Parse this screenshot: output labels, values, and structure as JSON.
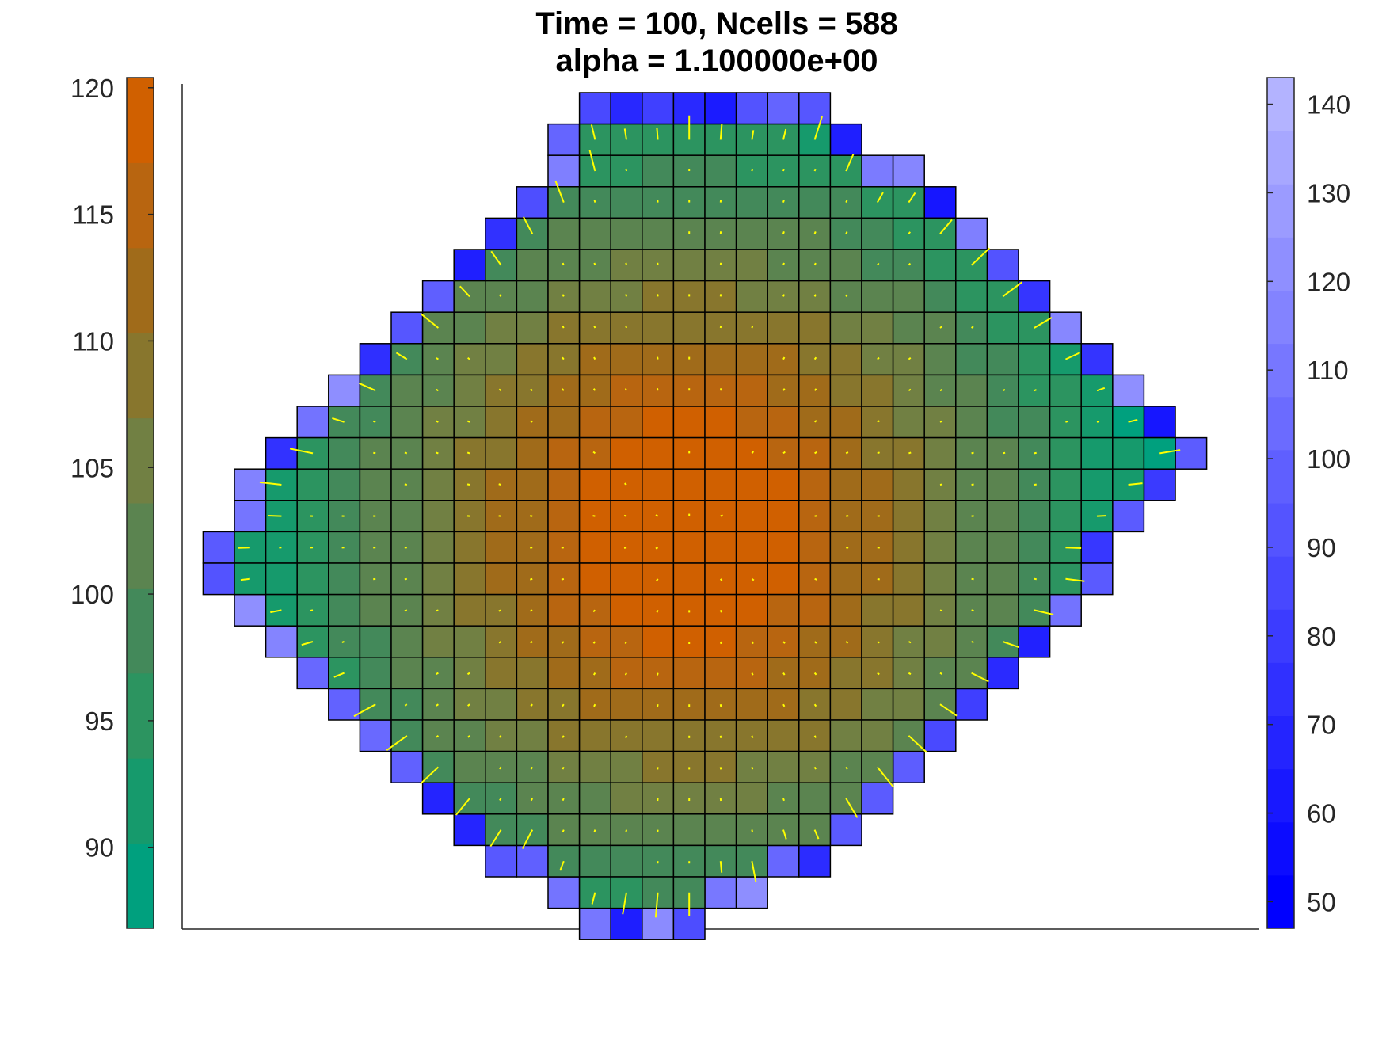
{
  "chart_data": {
    "type": "heatmap",
    "title_line1": "Time = 100, Ncells = 588",
    "title_line2": "alpha = 1.100000e+00",
    "axes_visible": false,
    "grid": false,
    "interior_colorbar": {
      "placement": "left",
      "range": [
        86.8,
        120.4
      ],
      "levels": 10,
      "ticks": [
        90,
        95,
        100,
        105,
        110,
        115,
        120
      ],
      "colors": [
        "#00a07e",
        "#169a6c",
        "#2c9460",
        "#43895a",
        "#5b8450",
        "#718043",
        "#88762d",
        "#a06b1a",
        "#b86510",
        "#d06000"
      ]
    },
    "boundary_colorbar": {
      "placement": "right",
      "range": [
        47,
        143
      ],
      "levels": 16,
      "ticks": [
        50,
        60,
        70,
        80,
        90,
        100,
        110,
        120,
        130,
        140
      ],
      "color_low": "#0000ff",
      "color_high": "#b3b3ff"
    },
    "interior_rows": [
      {
        "y": 118,
        "xs": [
          -4,
          3
        ],
        "note": "top"
      },
      {
        "y": 117,
        "xs": [
          -4,
          4
        ]
      },
      {
        "y": 116,
        "xs": [
          -5,
          6
        ]
      },
      {
        "y": 115,
        "xs": [
          -6,
          7
        ]
      },
      {
        "y": 114,
        "xs": [
          -7,
          8
        ]
      },
      {
        "y": 113,
        "xs": [
          -8,
          9
        ]
      },
      {
        "y": 112,
        "xs": [
          -9,
          10
        ]
      },
      {
        "y": 111,
        "xs": [
          -10,
          11
        ]
      },
      {
        "y": 110,
        "xs": [
          -11,
          12
        ]
      },
      {
        "y": 109,
        "xs": [
          -12,
          13
        ]
      },
      {
        "y": 108,
        "xs": [
          -13,
          14
        ]
      },
      {
        "y": 107,
        "xs": [
          -14,
          13
        ]
      },
      {
        "y": 106,
        "xs": [
          -14,
          12
        ]
      },
      {
        "y": 105,
        "xs": [
          -15,
          11
        ]
      },
      {
        "y": 104,
        "xs": [
          -15,
          11
        ]
      },
      {
        "y": 103,
        "xs": [
          -14,
          10
        ]
      },
      {
        "y": 102,
        "xs": [
          -13,
          9
        ]
      },
      {
        "y": 101,
        "xs": [
          -12,
          8
        ]
      },
      {
        "y": 100,
        "xs": [
          -11,
          7
        ]
      },
      {
        "y": 99,
        "xs": [
          -10,
          6
        ]
      },
      {
        "y": 98,
        "xs": [
          -9,
          5
        ]
      },
      {
        "y": 97,
        "xs": [
          -8,
          4
        ]
      },
      {
        "y": 96,
        "xs": [
          -7,
          3
        ]
      },
      {
        "y": 95,
        "xs": [
          -5,
          1
        ]
      },
      {
        "y": 94,
        "xs": [
          -4,
          -1
        ]
      }
    ],
    "arrows_color": "#ffff00"
  }
}
